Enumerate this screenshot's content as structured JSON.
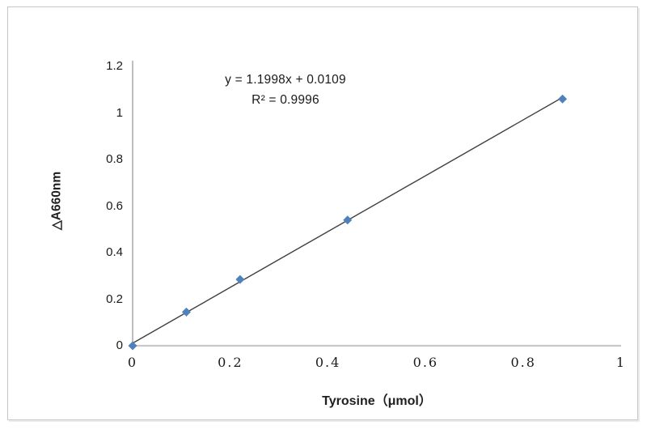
{
  "figure": {
    "background": "#ffffff",
    "frame_border_color": "#c6c6c6"
  },
  "chart_data": {
    "type": "scatter",
    "title": "",
    "xlabel": "Tyrosine（μmol）",
    "ylabel": "△A660nm",
    "x": [
      0,
      0.11,
      0.22,
      0.44,
      0.88
    ],
    "y": [
      0,
      0.145,
      0.285,
      0.54,
      1.06
    ],
    "trendline": {
      "slope": 1.1998,
      "intercept": 0.0109,
      "equation_label": "y = 1.1998x + 0.0109",
      "r_squared_label": "R² = 0.9996",
      "color": "#3f3f3f"
    },
    "xlim": [
      0,
      1
    ],
    "ylim": [
      0,
      1.2
    ],
    "x_ticks": [
      "0",
      "0.2",
      "0.4",
      "0.6",
      "0.8",
      "1"
    ],
    "y_ticks": [
      "0",
      "0.2",
      "0.4",
      "0.6",
      "0.8",
      "1",
      "1.2"
    ],
    "grid": false,
    "legend": false,
    "marker": {
      "shape": "diamond",
      "color": "#4f81bd",
      "size": 11
    },
    "axes": {
      "x_axis_color": "#c9c9c9",
      "y_axis_color": "#9a9a9a"
    }
  }
}
